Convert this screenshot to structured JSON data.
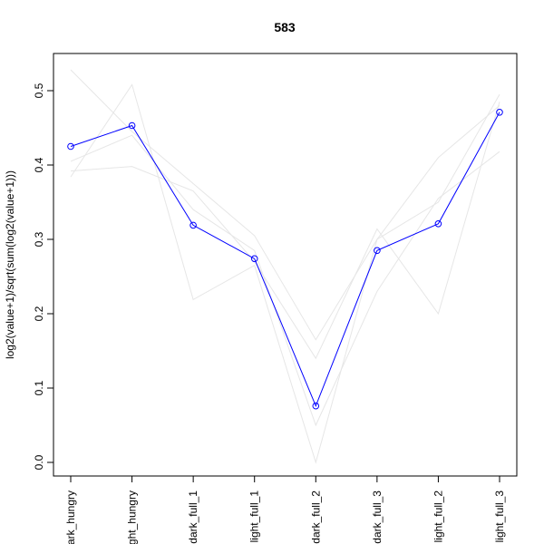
{
  "chart_data": {
    "type": "line",
    "title": "583",
    "xlabel": "",
    "ylabel": "log2(value+1)/sqrt(sum(log2(value+1)))",
    "categories": [
      "dark_hungry",
      "light_hungry",
      "dark_full_1",
      "light_full_1",
      "dark_full_2",
      "dark_full_3",
      "light_full_2",
      "light_full_3"
    ],
    "ylim": [
      -0.02,
      0.55
    ],
    "yticks": [
      0.0,
      0.1,
      0.2,
      0.3,
      0.4,
      0.5
    ],
    "ytick_labels": [
      "0.0",
      "0.1",
      "0.2",
      "0.3",
      "0.4",
      "0.5"
    ],
    "grid": false,
    "series": [
      {
        "values": [
          0.425,
          0.453,
          0.319,
          0.274,
          0.076,
          0.285,
          0.321,
          0.471
        ],
        "color": "#0000ff",
        "markers": true
      },
      {
        "values": [
          0.528,
          0.445,
          0.375,
          0.305,
          0.165,
          0.3,
          0.41,
          0.48
        ],
        "color": "#e6e6e6"
      },
      {
        "values": [
          0.384,
          0.508,
          0.219,
          0.265,
          0.0,
          0.3,
          0.35,
          0.495
        ],
        "color": "#e6e6e6"
      },
      {
        "values": [
          0.392,
          0.398,
          0.365,
          0.27,
          0.14,
          0.314,
          0.2,
          0.485
        ],
        "color": "#e6e6e6"
      },
      {
        "values": [
          0.405,
          0.44,
          0.34,
          0.285,
          0.05,
          0.23,
          0.355,
          0.418
        ],
        "color": "#e6e6e6"
      }
    ]
  }
}
